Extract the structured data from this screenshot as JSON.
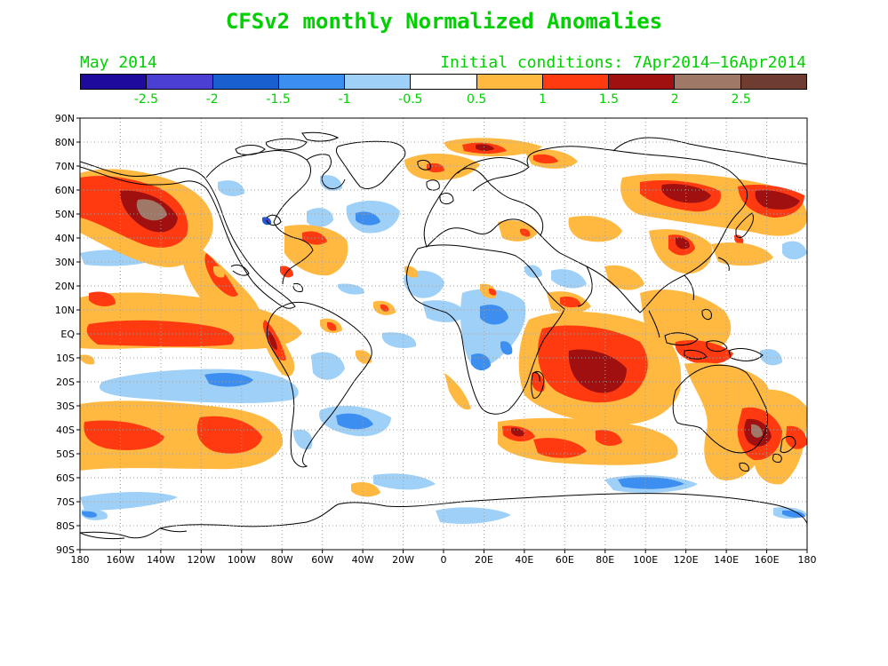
{
  "title": "CFSv2 monthly Normalized Anomalies",
  "lead_month": "May 2014",
  "initial_conditions": "Initial conditions: 7Apr2014–16Apr2014",
  "colorbar": {
    "colors": [
      "#1e0a9c",
      "#4a3fd2",
      "#1a5fcf",
      "#3c8ef0",
      "#9fd0f8",
      "#ffffff",
      "#ffb840",
      "#ff3a10",
      "#a01010",
      "#a07868",
      "#6e3c30"
    ],
    "labels": [
      "-2.5",
      "-2",
      "-1.5",
      "-1",
      "-0.5",
      "0.5",
      "1",
      "1.5",
      "2",
      "2.5"
    ]
  },
  "lat_labels": [
    "90N",
    "80N",
    "70N",
    "60N",
    "50N",
    "40N",
    "30N",
    "20N",
    "10N",
    "EQ",
    "10S",
    "20S",
    "30S",
    "40S",
    "50S",
    "60S",
    "70S",
    "80S",
    "90S"
  ],
  "lon_labels": [
    "180",
    "160W",
    "140W",
    "120W",
    "100W",
    "80W",
    "60W",
    "40W",
    "20W",
    "0",
    "20E",
    "40E",
    "60E",
    "80E",
    "100E",
    "120E",
    "140E",
    "160E",
    "180"
  ]
}
